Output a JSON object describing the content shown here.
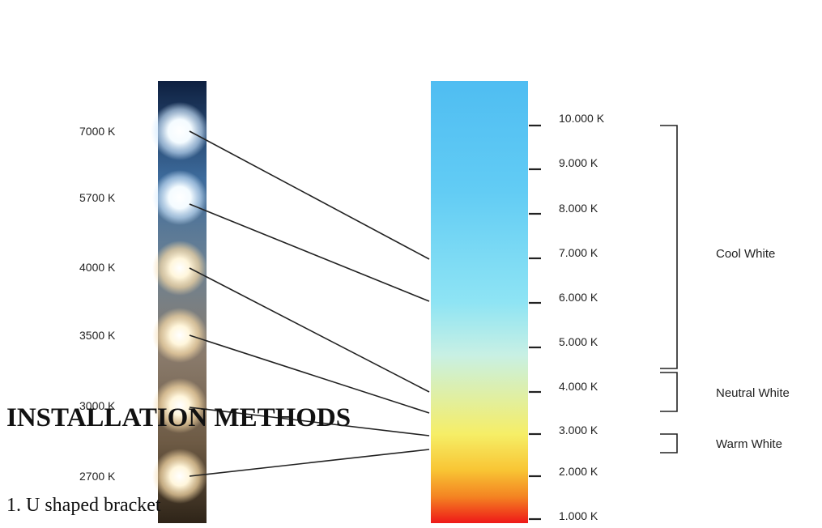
{
  "led_strip": {
    "labels": [
      "7000 K",
      "5700 K",
      "4000 K",
      "3500 K",
      "3000 K",
      "2700 K"
    ]
  },
  "scale": {
    "ticks": [
      "10.000 K",
      "9.000 K",
      "8.000 K",
      "7.000 K",
      "6.000 K",
      "5.000 K",
      "4.000 K",
      "3.000 K",
      "2.000 K",
      "1.000 K"
    ]
  },
  "brackets": [
    "Cool White",
    "Neutral White",
    "Warm White"
  ],
  "heading": "INSTALLATION METHODS",
  "methods": [
    "1. U shaped bracket"
  ],
  "colors": {
    "gradient_stops": [
      "#4fbdf2",
      "#62ccf4",
      "#8ee4f4",
      "#c8f0e4",
      "#f6ee66",
      "#f8c534",
      "#f48422",
      "#ee1818"
    ],
    "led_warm": "#fff2cf",
    "led_cool": "#ffffff",
    "ink": "#222222"
  }
}
